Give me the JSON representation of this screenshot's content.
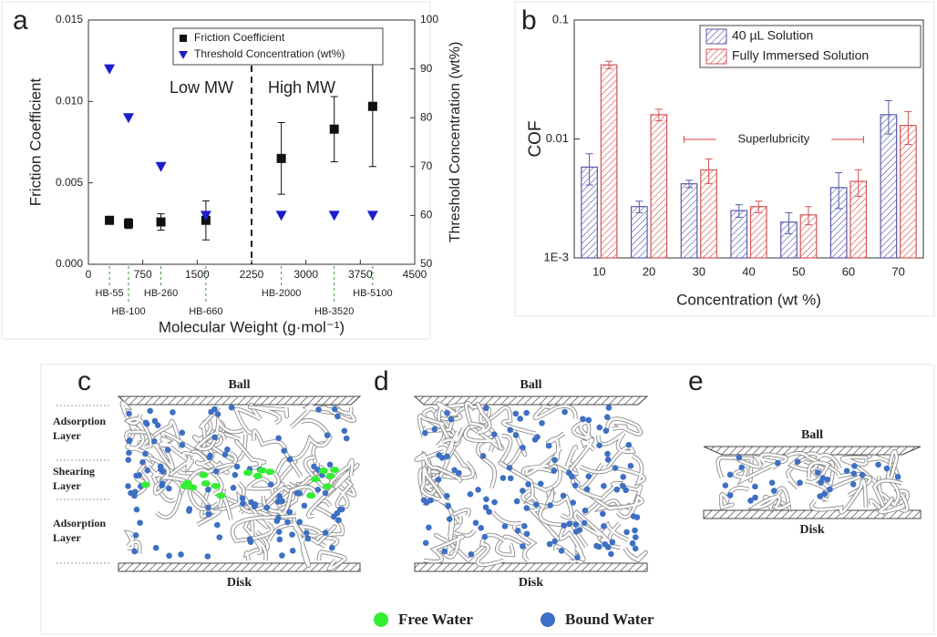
{
  "chart_data": [
    {
      "type": "scatter",
      "panel": "a",
      "xlabel": "Molecular Weight (g·mol⁻¹)",
      "ylabel": "Friction Coefficient",
      "y2label": "Threshold Concentration (wt%)",
      "x": [
        290,
        553,
        1000,
        1620,
        2660,
        3390,
        3920
      ],
      "point_labels": [
        "HB-55",
        "HB-100",
        "HB-260",
        "HB-660",
        "HB-2000",
        "HB-3520",
        "HB-5100"
      ],
      "xlim": [
        0,
        4500
      ],
      "xticks": [
        0,
        750,
        1500,
        2250,
        3000,
        3750,
        4500
      ],
      "ylim": [
        0,
        0.015
      ],
      "yticks": [
        {
          "value": 0,
          "label": "0.000"
        },
        {
          "value": 0.005,
          "label": "0.005"
        },
        {
          "value": 0.01,
          "label": "0.010"
        },
        {
          "value": 0.015,
          "label": "0.015"
        }
      ],
      "y2lim": [
        50,
        100
      ],
      "y2ticks": [
        50,
        60,
        70,
        80,
        90,
        100
      ],
      "series": [
        {
          "name": "Friction Coefficient",
          "color": "#111111",
          "marker": "square",
          "values": [
            0.0027,
            0.0025,
            0.0026,
            0.0027,
            0.0065,
            0.0083,
            0.0097
          ],
          "errors": [
            0.0001,
            0.0003,
            0.0005,
            0.0012,
            0.0022,
            0.002,
            0.0037
          ]
        },
        {
          "name": "Threshold Concentration (wt%)",
          "color": "#1c1ccc",
          "marker": "triangle",
          "axis": "y2",
          "values": [
            90,
            80,
            70,
            60,
            60,
            60,
            60
          ]
        }
      ],
      "divider_x": 2250,
      "annotations": [
        {
          "text": "Low MW",
          "color": "#33cc33"
        },
        {
          "text": "High MW",
          "color": "#dd2222"
        }
      ],
      "legend": "upper center"
    },
    {
      "type": "bar",
      "panel": "b",
      "log_y": true,
      "xlabel": "Concentration (wt %)",
      "ylabel": "COF",
      "categories": [
        "10",
        "20",
        "30",
        "40",
        "50",
        "60",
        "70"
      ],
      "ylim": [
        0.001,
        0.1
      ],
      "yticks": [
        {
          "value": 0.001,
          "label": "1E-3"
        },
        0.01,
        0.1
      ],
      "series": [
        {
          "name": "40 µL Solution",
          "color": "#5a5aa8",
          "values": [
            0.0058,
            0.0027,
            0.0042,
            0.0025,
            0.002,
            0.0039,
            0.016
          ],
          "errors": [
            0.0017,
            0.0003,
            0.0003,
            0.0003,
            0.0004,
            0.0013,
            0.005
          ]
        },
        {
          "name": "Fully Immersed Solution",
          "color": "#d45555",
          "values": [
            0.042,
            0.016,
            0.0055,
            0.0027,
            0.0023,
            0.0044,
            0.013
          ],
          "errors": [
            0.003,
            0.0018,
            0.0013,
            0.0003,
            0.0004,
            0.0011,
            0.004
          ]
        }
      ],
      "annotation": {
        "text": "Superlubricity",
        "color": "#d43c3c"
      },
      "legend": "upper right"
    }
  ],
  "diagrams": [
    {
      "panel": "c",
      "top": "Ball",
      "bottom": "Disk",
      "layers": [
        [
          "Adsorption",
          "Layer"
        ],
        [
          "Shearing",
          "Layer"
        ],
        [
          "Adsorption",
          "Layer"
        ]
      ]
    },
    {
      "panel": "d",
      "top": "Ball",
      "bottom": "Disk"
    },
    {
      "panel": "e",
      "top": "Ball",
      "bottom": "Disk"
    }
  ],
  "legend": {
    "free": "Free Water",
    "bound": "Bound Water"
  }
}
